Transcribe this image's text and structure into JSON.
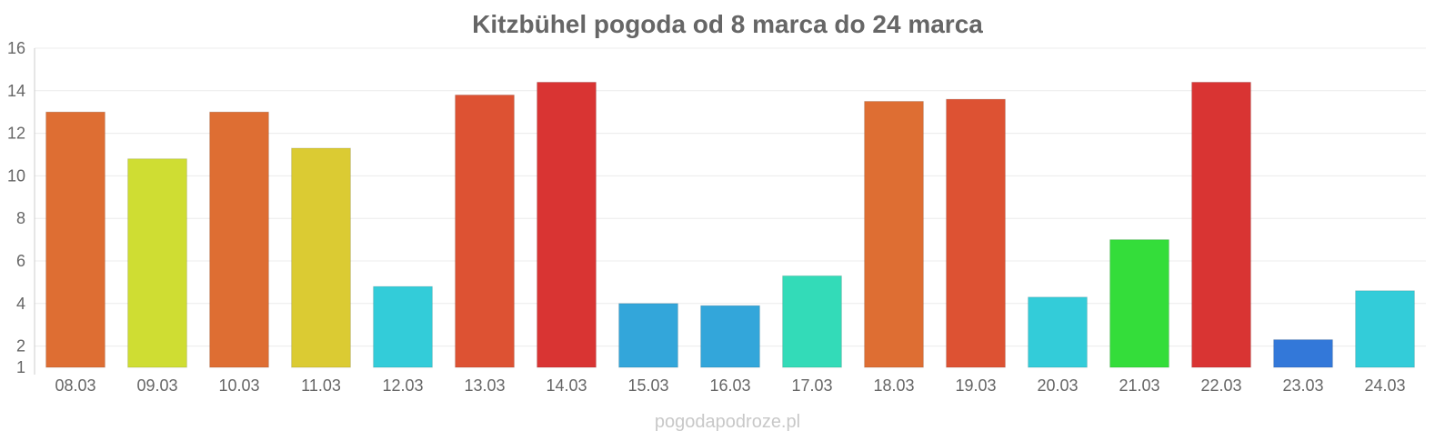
{
  "chart_data": {
    "type": "bar",
    "title": "Kitzbühel pogoda od 8 marca do 24 marca",
    "xlabel": "",
    "ylabel": "",
    "ylim": [
      1,
      16
    ],
    "yticks": [
      1,
      2,
      4,
      6,
      8,
      10,
      12,
      14,
      16
    ],
    "grid": true,
    "categories": [
      "08.03",
      "09.03",
      "10.03",
      "11.03",
      "12.03",
      "13.03",
      "14.03",
      "15.03",
      "16.03",
      "17.03",
      "18.03",
      "19.03",
      "20.03",
      "21.03",
      "22.03",
      "23.03",
      "24.03"
    ],
    "values": [
      13.0,
      10.8,
      13.0,
      11.3,
      4.8,
      13.8,
      14.4,
      4.0,
      3.9,
      5.3,
      13.5,
      13.6,
      4.3,
      7.0,
      14.4,
      2.3,
      4.6
    ],
    "colors": [
      "#de6e33",
      "#cfdd33",
      "#de6e33",
      "#dbcb33",
      "#33ccd9",
      "#dd5233",
      "#d93433",
      "#33a6da",
      "#33a6da",
      "#33dbb8",
      "#de6e33",
      "#dd5233",
      "#33ccd9",
      "#34dd3a",
      "#d93433",
      "#3378d9",
      "#33ccd9"
    ]
  },
  "watermark": "pogodapodroze.pl"
}
